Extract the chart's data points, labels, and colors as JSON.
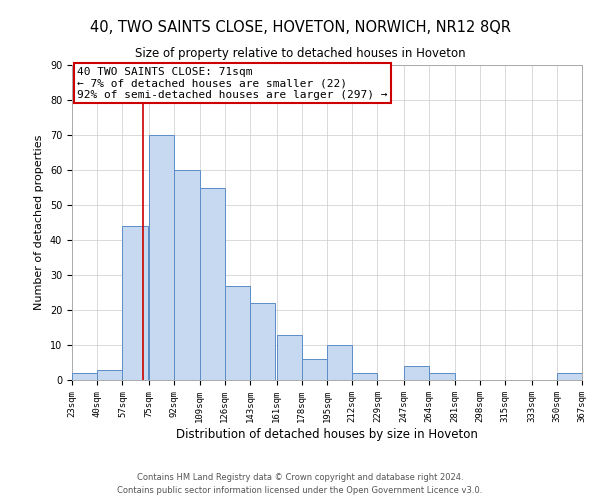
{
  "title": "40, TWO SAINTS CLOSE, HOVETON, NORWICH, NR12 8QR",
  "subtitle": "Size of property relative to detached houses in Hoveton",
  "xlabel": "Distribution of detached houses by size in Hoveton",
  "ylabel": "Number of detached properties",
  "bar_left_edges": [
    23,
    40,
    57,
    75,
    92,
    109,
    126,
    143,
    161,
    178,
    195,
    212,
    229,
    247,
    264,
    281,
    298,
    315,
    333,
    350
  ],
  "bar_heights": [
    2,
    3,
    44,
    70,
    60,
    55,
    27,
    22,
    13,
    6,
    10,
    2,
    0,
    4,
    2,
    0,
    0,
    0,
    0,
    2
  ],
  "bin_width": 17,
  "bar_color": "#c6d9f0",
  "bar_edge_color": "#5b8dc8",
  "tick_labels": [
    "23sqm",
    "40sqm",
    "57sqm",
    "75sqm",
    "92sqm",
    "109sqm",
    "126sqm",
    "143sqm",
    "161sqm",
    "178sqm",
    "195sqm",
    "212sqm",
    "229sqm",
    "247sqm",
    "264sqm",
    "281sqm",
    "298sqm",
    "315sqm",
    "333sqm",
    "350sqm",
    "367sqm"
  ],
  "ylim": [
    0,
    90
  ],
  "yticks": [
    0,
    10,
    20,
    30,
    40,
    50,
    60,
    70,
    80,
    90
  ],
  "xlim_left": 23,
  "xlim_right": 367,
  "marker_x": 71,
  "marker_color": "#cc0000",
  "annotation_text": "40 TWO SAINTS CLOSE: 71sqm\n← 7% of detached houses are smaller (22)\n92% of semi-detached houses are larger (297) →",
  "annotation_box_color": "#ffffff",
  "annotation_box_edge_color": "#cc0000",
  "footer_line1": "Contains HM Land Registry data © Crown copyright and database right 2024.",
  "footer_line2": "Contains public sector information licensed under the Open Government Licence v3.0.",
  "background_color": "#ffffff",
  "grid_color": "#cccccc",
  "title_fontsize": 10.5,
  "subtitle_fontsize": 8.5,
  "xlabel_fontsize": 8.5,
  "ylabel_fontsize": 8,
  "tick_fontsize": 6.5,
  "annotation_fontsize": 8,
  "footer_fontsize": 6
}
